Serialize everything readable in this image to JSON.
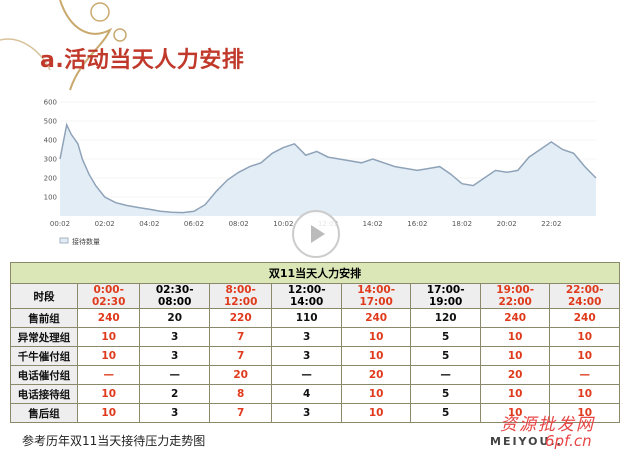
{
  "title": "a.活动当天人力安排",
  "footer": "参考历年双11当天接待压力走势图",
  "brand": "MEIYOU..",
  "watermark": {
    "line1": "资源批发网",
    "line2": "6pf.cn"
  },
  "colors": {
    "title": "#c0392b",
    "accent_red": "#e03a1c",
    "line": "#8fa3b8",
    "fill": "#e3edf6",
    "caption_bg": "#dbe7b6"
  },
  "chart_data": {
    "type": "area",
    "legend": "接待数量",
    "x_ticks": [
      "00:02",
      "02:02",
      "04:02",
      "06:02",
      "08:02",
      "10:02",
      "12:02",
      "14:02",
      "16:02",
      "18:02",
      "20:02",
      "22:02"
    ],
    "y_ticks": [
      100,
      200,
      300,
      400,
      500,
      600
    ],
    "ylim": [
      0,
      600
    ],
    "xlim": [
      0,
      24
    ],
    "x": [
      0,
      0.3,
      0.5,
      0.8,
      1.0,
      1.3,
      1.6,
      2.0,
      2.5,
      3.0,
      3.5,
      4.0,
      4.5,
      5.0,
      5.5,
      6.0,
      6.5,
      7.0,
      7.5,
      8.0,
      8.5,
      9.0,
      9.5,
      10.0,
      10.5,
      11.0,
      11.5,
      12.0,
      12.5,
      13.0,
      13.5,
      14.0,
      14.5,
      15.0,
      15.5,
      16.0,
      16.5,
      17.0,
      17.5,
      18.0,
      18.5,
      19.0,
      19.5,
      20.0,
      20.5,
      21.0,
      21.5,
      22.0,
      22.5,
      23.0,
      23.5,
      24.0
    ],
    "y": [
      300,
      480,
      430,
      380,
      300,
      220,
      160,
      100,
      70,
      55,
      45,
      35,
      25,
      20,
      18,
      25,
      60,
      130,
      190,
      230,
      260,
      280,
      330,
      360,
      380,
      320,
      340,
      310,
      300,
      290,
      280,
      300,
      280,
      260,
      250,
      240,
      250,
      260,
      220,
      170,
      160,
      200,
      240,
      230,
      240,
      310,
      350,
      390,
      350,
      330,
      260,
      200
    ]
  },
  "table": {
    "caption": "双11当天人力安排",
    "header_label": "时段",
    "columns": [
      {
        "label": "0:00-02:30",
        "red": true
      },
      {
        "label": "02:30-08:00",
        "red": false
      },
      {
        "label": "8:00-12:00",
        "red": true
      },
      {
        "label": "12:00-14:00",
        "red": false
      },
      {
        "label": "14:00-17:00",
        "red": true
      },
      {
        "label": "17:00-19:00",
        "red": false
      },
      {
        "label": "19:00-22:00",
        "red": true
      },
      {
        "label": "22:00-24:00",
        "red": true
      }
    ],
    "rows": [
      {
        "label": "售前组",
        "cells": [
          "240",
          "20",
          "220",
          "110",
          "240",
          "120",
          "240",
          "240"
        ]
      },
      {
        "label": "异常处理组",
        "cells": [
          "10",
          "3",
          "7",
          "3",
          "10",
          "5",
          "10",
          "10"
        ]
      },
      {
        "label": "千牛催付组",
        "cells": [
          "10",
          "3",
          "7",
          "3",
          "10",
          "5",
          "10",
          "10"
        ]
      },
      {
        "label": "电话催付组",
        "cells": [
          "—",
          "—",
          "20",
          "—",
          "20",
          "—",
          "20",
          "—"
        ]
      },
      {
        "label": "电话接待组",
        "cells": [
          "10",
          "2",
          "8",
          "4",
          "10",
          "5",
          "10",
          "10"
        ]
      },
      {
        "label": "售后组",
        "cells": [
          "10",
          "3",
          "7",
          "3",
          "10",
          "5",
          "10",
          "10"
        ]
      }
    ]
  }
}
